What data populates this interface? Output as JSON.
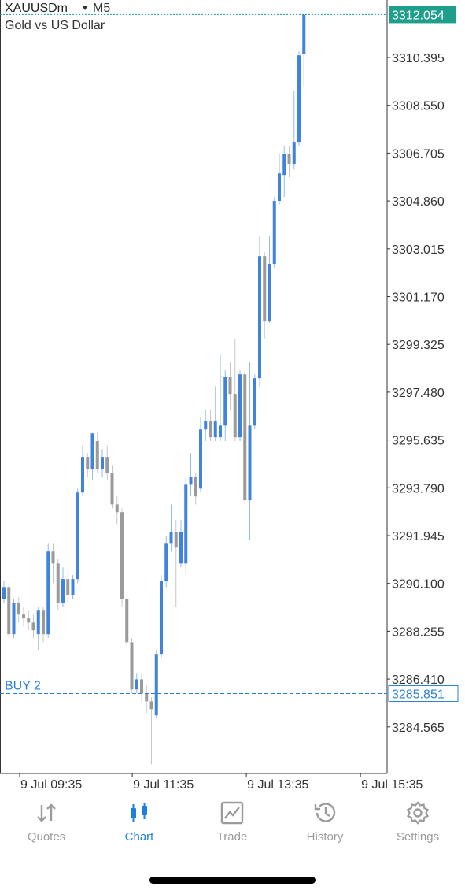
{
  "header": {
    "symbol": "XAUUSDm",
    "timeframe": "M5",
    "description": "Gold vs US Dollar"
  },
  "chart_data": {
    "type": "candlestick",
    "up_color": "#3f83dc",
    "down_color": "#9a9a9a",
    "x": [
      0,
      1,
      2,
      3,
      4,
      5,
      6,
      7,
      8,
      9,
      10,
      11,
      12,
      13,
      14,
      15,
      16,
      17,
      18,
      19,
      20,
      21,
      22,
      23,
      24,
      25,
      26,
      27,
      28,
      29,
      30,
      31,
      32,
      33,
      34,
      35,
      36,
      37,
      38,
      39,
      40,
      41,
      42,
      43,
      44,
      45,
      46,
      47,
      48,
      49,
      50,
      51,
      52,
      53,
      54,
      55,
      56,
      57,
      58,
      59,
      60,
      61
    ],
    "open": [
      3289.51,
      3289.96,
      3288.14,
      3289.35,
      3288.9,
      3288.75,
      3288.59,
      3288.14,
      3289.05,
      3288.14,
      3291.33,
      3290.87,
      3289.35,
      3290.27,
      3289.66,
      3290.27,
      3293.61,
      3294.98,
      3294.52,
      3295.59,
      3294.52,
      3294.98,
      3294.37,
      3293.15,
      3292.85,
      3289.51,
      3287.83,
      3286.01,
      3286.4,
      3285.86,
      3285.55,
      3285.01,
      3287.38,
      3290.18,
      3291.63,
      3292.09,
      3290.87,
      3290.87,
      3293.91,
      3294.22,
      3293.76,
      3296.04,
      3296.35,
      3295.74,
      3295.74,
      3296.19,
      3298.08,
      3297.41,
      3295.74,
      3298.17,
      3293.31,
      3296.19,
      3298.02,
      3302.73,
      3300.21,
      3302.43,
      3304.86,
      3305.86,
      3306.68,
      3306.29,
      3307.14,
      3310.54
    ],
    "high": [
      3290.18,
      3290.11,
      3289.51,
      3289.57,
      3289.2,
      3289.05,
      3288.9,
      3289.2,
      3289.2,
      3291.63,
      3291.63,
      3291.03,
      3290.72,
      3290.57,
      3290.42,
      3293.76,
      3295.43,
      3295.13,
      3295.89,
      3295.95,
      3295.28,
      3295.43,
      3294.67,
      3293.46,
      3293.0,
      3289.66,
      3287.99,
      3286.62,
      3286.62,
      3286.16,
      3285.71,
      3287.53,
      3290.42,
      3291.94,
      3293.15,
      3292.55,
      3292.55,
      3294.22,
      3295.13,
      3294.37,
      3296.5,
      3296.8,
      3296.8,
      3297.71,
      3298.93,
      3298.32,
      3298.63,
      3299.54,
      3298.32,
      3298.32,
      3298.63,
      3298.17,
      3303.49,
      3302.88,
      3303.49,
      3305.01,
      3306.68,
      3306.99,
      3306.99,
      3309.11,
      3310.63,
      3312.05
    ],
    "low": [
      3289.35,
      3287.99,
      3287.99,
      3288.59,
      3288.44,
      3288.29,
      3287.99,
      3287.53,
      3287.83,
      3287.99,
      3290.11,
      3289.05,
      3289.2,
      3289.35,
      3289.51,
      3290.11,
      3293.46,
      3294.22,
      3294.07,
      3294.37,
      3294.22,
      3294.07,
      3293.0,
      3292.39,
      3289.2,
      3287.68,
      3285.86,
      3285.86,
      3285.55,
      3285.1,
      3283.12,
      3284.89,
      3287.23,
      3289.96,
      3291.33,
      3289.2,
      3290.72,
      3290.42,
      3293.46,
      3293.15,
      3293.61,
      3295.59,
      3295.59,
      3295.59,
      3295.59,
      3295.59,
      3296.8,
      3295.59,
      3295.59,
      3293.15,
      3291.79,
      3296.04,
      3297.71,
      3299.54,
      3300.15,
      3302.27,
      3304.71,
      3305.01,
      3305.77,
      3306.07,
      3306.99,
      3309.27
    ],
    "close": [
      3289.96,
      3288.14,
      3289.35,
      3288.9,
      3288.75,
      3288.59,
      3288.29,
      3289.05,
      3288.14,
      3291.33,
      3290.87,
      3289.35,
      3290.27,
      3289.66,
      3290.27,
      3293.61,
      3294.98,
      3294.52,
      3295.89,
      3294.52,
      3294.98,
      3294.37,
      3293.15,
      3292.85,
      3289.51,
      3287.83,
      3286.01,
      3286.4,
      3285.86,
      3285.55,
      3285.25,
      3287.38,
      3290.18,
      3291.63,
      3292.09,
      3291.48,
      3292.09,
      3293.91,
      3294.22,
      3293.46,
      3296.04,
      3296.35,
      3295.74,
      3296.35,
      3296.19,
      3298.08,
      3297.41,
      3295.74,
      3298.17,
      3293.31,
      3296.19,
      3298.02,
      3302.73,
      3300.21,
      3302.43,
      3304.86,
      3305.92,
      3306.68,
      3306.29,
      3307.14,
      3310.48,
      3312.05
    ],
    "xlim": [
      -0.8,
      77.92
    ],
    "xticks": [
      {
        "value": 3.2,
        "label": "9 Jul 09:35"
      },
      {
        "value": 26.1,
        "label": "9 Jul 11:35"
      },
      {
        "value": 49.3,
        "label": "9 Jul 13:35"
      },
      {
        "value": 72.5,
        "label": "9 Jul 15:35"
      }
    ],
    "ylim": [
      3282.765,
      3312.614
    ],
    "yticks": [
      3284.565,
      {
        "value": 3286.41,
        "label": "3286.410"
      },
      3288.255,
      {
        "value": 3290.1,
        "label": "3290.100"
      },
      3291.945,
      {
        "value": 3293.79,
        "label": "3293.790"
      },
      3295.635,
      {
        "value": 3297.48,
        "label": "3297.480"
      },
      3299.325,
      {
        "value": 3301.17,
        "label": "3301.170"
      },
      3303.015,
      {
        "value": 3304.86,
        "label": "3304.860"
      },
      3306.705,
      {
        "value": 3308.55,
        "label": "3308.550"
      },
      3310.395
    ],
    "current_price": 3312.054,
    "current_color": "#1f9e8c",
    "price_lines": [
      {
        "label": "BUY 2",
        "value": 3285.851,
        "color": "#2a7fd4"
      }
    ]
  },
  "tabs": [
    {
      "label": "Quotes"
    },
    {
      "label": "Chart",
      "active": true
    },
    {
      "label": "Trade"
    },
    {
      "label": "History"
    },
    {
      "label": "Settings"
    }
  ]
}
